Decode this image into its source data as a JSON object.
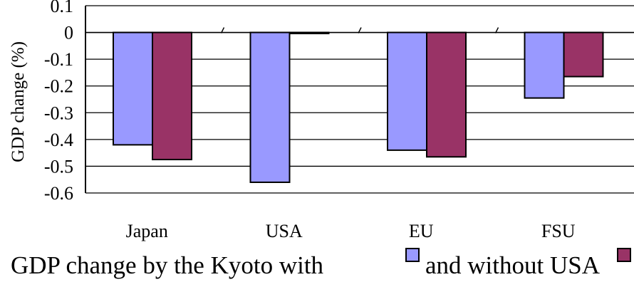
{
  "chart_data": {
    "type": "bar",
    "ylabel": "GDP change (%)",
    "xlabel": "",
    "title": "",
    "ylim": [
      -0.6,
      0.1
    ],
    "yticks": [
      "0.1",
      "0",
      "-0.1",
      "-0.2",
      "-0.3",
      "-0.4",
      "-0.5",
      "-0.6"
    ],
    "grid": true,
    "categories": [
      "Japan",
      "USA",
      "EU",
      "FSU"
    ],
    "series": [
      {
        "values": [
          -0.42,
          -0.56,
          -0.44,
          -0.245
        ],
        "color": "#9999ff"
      },
      {
        "values": [
          -0.475,
          0.0,
          -0.465,
          -0.165
        ],
        "color": "#993366"
      }
    ]
  },
  "caption": {
    "text_part1": "GDP change by the Kyoto with",
    "text_part2": "and without USA"
  }
}
